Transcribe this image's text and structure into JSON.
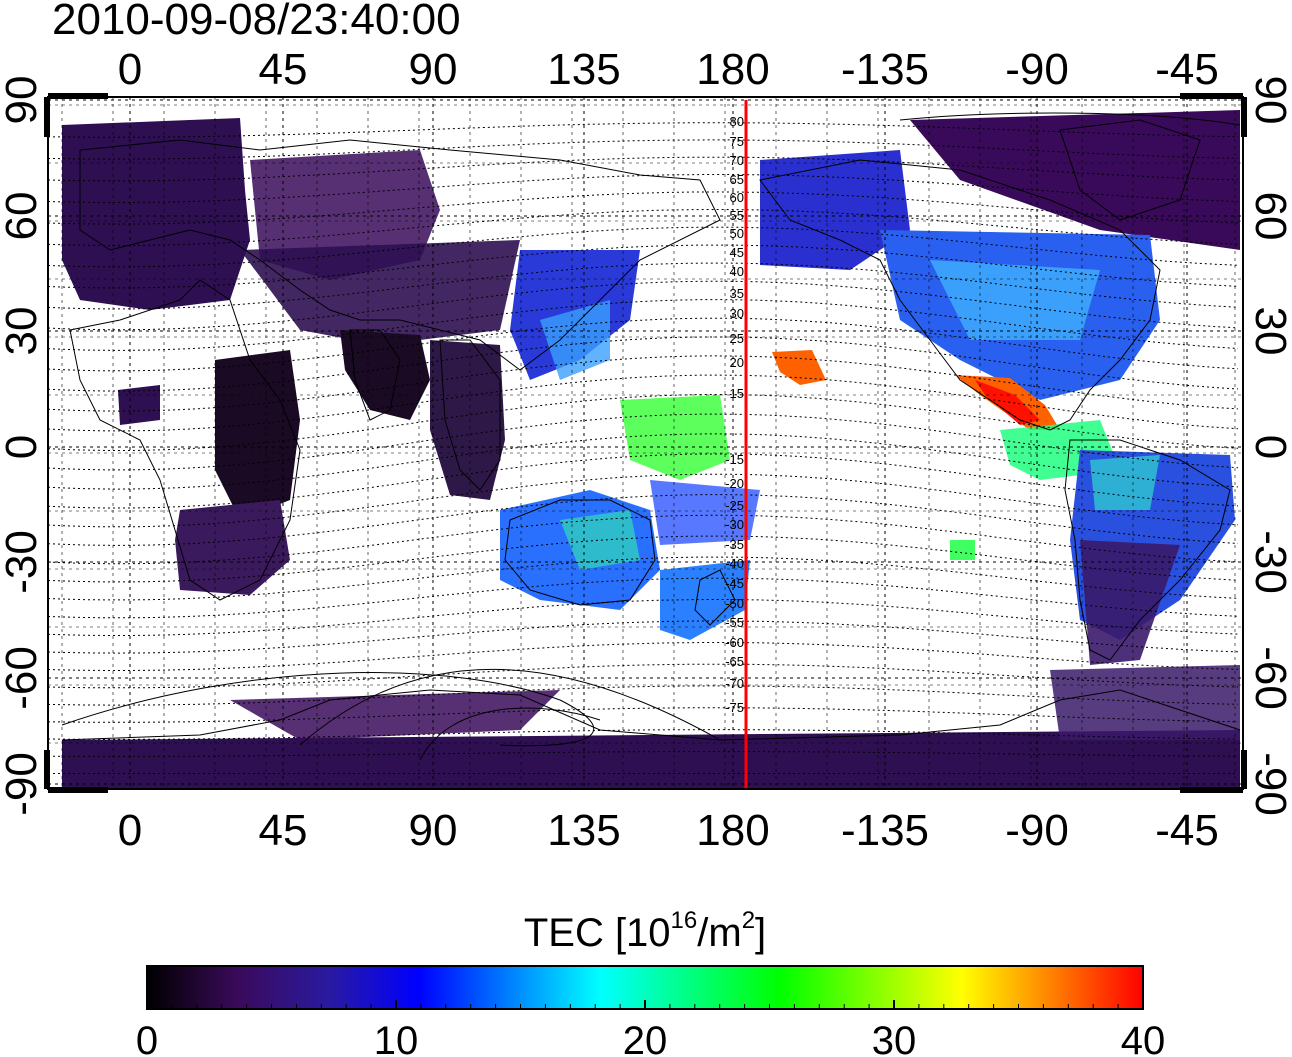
{
  "title": "2010-09-08/23:40:00",
  "map": {
    "lon_ticks": [
      "0",
      "45",
      "90",
      "135",
      "180",
      "-135",
      "-90",
      "-45"
    ],
    "lat_ticks": [
      "90",
      "60",
      "30",
      "0",
      "-30",
      "-60",
      "-90"
    ],
    "meridian_labels": [
      "80",
      "75",
      "70",
      "65",
      "60",
      "55",
      "50",
      "45",
      "40",
      "35",
      "30",
      "25",
      "20",
      "15",
      "-15",
      "-20",
      "-25",
      "-30",
      "-35",
      "-40",
      "-45",
      "-50",
      "-55",
      "-60",
      "-65",
      "-70",
      "-75"
    ],
    "reference_line_color": "#ff0000"
  },
  "colorbar": {
    "label_prefix": "TEC  [10",
    "label_exp": "16",
    "label_mid": "/m",
    "label_exp2": "2",
    "label_suffix": "]",
    "ticks": [
      "0",
      "10",
      "20",
      "30",
      "40"
    ],
    "colors": [
      "#000000",
      "#3a0a5a",
      "#2a1aa0",
      "#0000ff",
      "#0080ff",
      "#00ffff",
      "#00ff80",
      "#00ff00",
      "#80ff00",
      "#ffff00",
      "#ff8000",
      "#ff0000"
    ]
  }
}
